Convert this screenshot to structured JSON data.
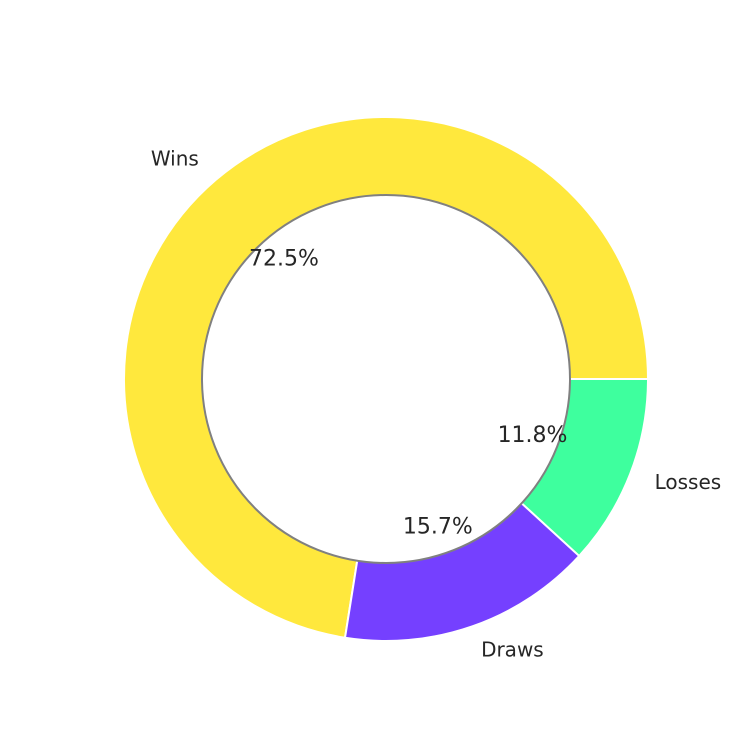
{
  "chart_data": {
    "type": "pie",
    "donut": true,
    "title": "",
    "categories": [
      "Wins",
      "Draws",
      "Losses"
    ],
    "values": [
      72.5,
      15.7,
      11.8
    ],
    "value_labels": [
      "72.5%",
      "15.7%",
      "11.8%"
    ],
    "colors": [
      "#FFE83D",
      "#7540FF",
      "#3EFF9E"
    ],
    "legend": "none",
    "grid": false
  }
}
